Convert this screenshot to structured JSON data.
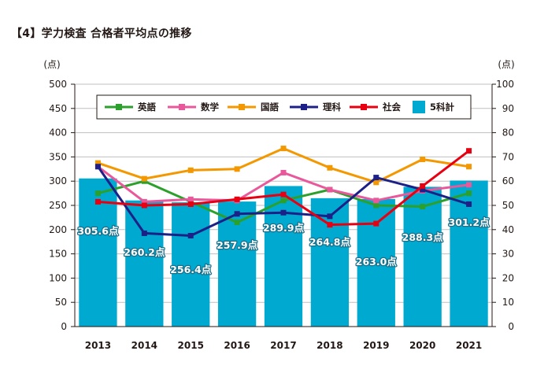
{
  "title": "【4】学力検査 合格者平均点の推移",
  "chart_data": {
    "type": "bar+line",
    "title": "【4】学力検査 合格者平均点の推移",
    "ylabel_left": "(点)",
    "ylabel_right": "(点)",
    "ylim_left": [
      0,
      500
    ],
    "ylim_right": [
      0,
      100
    ],
    "yticks_left": [
      "0",
      "50",
      "100",
      "150",
      "200",
      "250",
      "300",
      "350",
      "400",
      "450",
      "500"
    ],
    "yticks_right": [
      "0",
      "10",
      "20",
      "30",
      "40",
      "50",
      "60",
      "70",
      "80",
      "90",
      "100"
    ],
    "categories": [
      "2013",
      "2014",
      "2015",
      "2016",
      "2017",
      "2018",
      "2019",
      "2020",
      "2021"
    ],
    "bar_series": {
      "name": "5科計",
      "color": "#00a9cf",
      "values": [
        305.6,
        260.2,
        256.4,
        257.9,
        289.9,
        264.8,
        263.0,
        288.3,
        301.2
      ],
      "labels": [
        "305.6点",
        "260.2点",
        "256.4点",
        "257.9点",
        "289.9点",
        "264.8点",
        "263.0点",
        "288.3点",
        "301.2点"
      ]
    },
    "line_series": [
      {
        "name": "英語",
        "color": "#2ca02c",
        "values": [
          55.0,
          60.0,
          51.5,
          43.0,
          52.0,
          56.5,
          50.0,
          49.5,
          55.0
        ]
      },
      {
        "name": "数学",
        "color": "#e8589a",
        "values": [
          66.0,
          51.5,
          52.5,
          52.0,
          63.5,
          56.5,
          52.0,
          56.0,
          58.5
        ]
      },
      {
        "name": "国語",
        "color": "#f39800",
        "values": [
          67.5,
          61.0,
          64.5,
          65.0,
          73.5,
          65.5,
          59.5,
          69.0,
          66.0
        ]
      },
      {
        "name": "理科",
        "color": "#1d2087",
        "values": [
          66.0,
          38.5,
          37.5,
          46.5,
          47.0,
          45.5,
          61.5,
          56.5,
          50.5
        ]
      },
      {
        "name": "社会",
        "color": "#e60012",
        "values": [
          51.5,
          50.0,
          50.5,
          52.5,
          54.5,
          42.0,
          42.5,
          58.0,
          72.5
        ]
      }
    ],
    "legend_order": [
      "英語",
      "数学",
      "国語",
      "理科",
      "社会",
      "5科計"
    ],
    "legend_position": "top-center",
    "grid": true
  }
}
